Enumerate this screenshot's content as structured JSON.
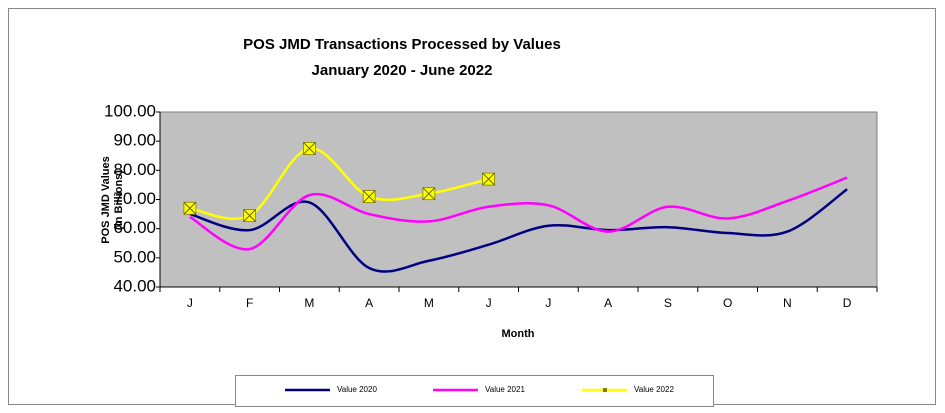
{
  "chart_data": {
    "type": "line",
    "title": "POS JMD Transactions Processed by Values",
    "subtitle": "January 2020 - June 2022",
    "y_label": [
      "POS JMD Values",
      "(in Billions)"
    ],
    "x_label": "Month",
    "categories": [
      "J",
      "F",
      "M",
      "A",
      "M",
      "J",
      "J",
      "A",
      "S",
      "O",
      "N",
      "D"
    ],
    "series": [
      {
        "name": "Value 2020",
        "color": "#000080",
        "values": [
          65,
          59.5,
          69,
          46.5,
          49,
          54.5,
          61,
          59.5,
          60.5,
          58.5,
          59,
          73.5
        ]
      },
      {
        "name": "Value 2021",
        "color": "#ff00ff",
        "values": [
          64,
          53,
          71.5,
          65,
          62.5,
          67.5,
          68,
          59,
          67.5,
          63.5,
          69.5,
          77.5
        ]
      },
      {
        "name": "Value 2022",
        "color": "#ffff00",
        "marker": true,
        "values": [
          67,
          64.5,
          87.5,
          71,
          72,
          77,
          null,
          null,
          null,
          null,
          null,
          null
        ]
      }
    ],
    "ylim": [
      40,
      100
    ],
    "yticks": [
      {
        "value": 40,
        "label": "40.00"
      },
      {
        "value": 50,
        "label": "50.00"
      },
      {
        "value": 60,
        "label": "60.00"
      },
      {
        "value": 70,
        "label": "70.00"
      },
      {
        "value": 80,
        "label": "80.00"
      },
      {
        "value": 90,
        "label": "90.00"
      },
      {
        "value": 100,
        "label": "100.00"
      }
    ],
    "grid": false,
    "smooth": true,
    "plot_background": "#c0c0c0",
    "legend_position": "bottom"
  }
}
